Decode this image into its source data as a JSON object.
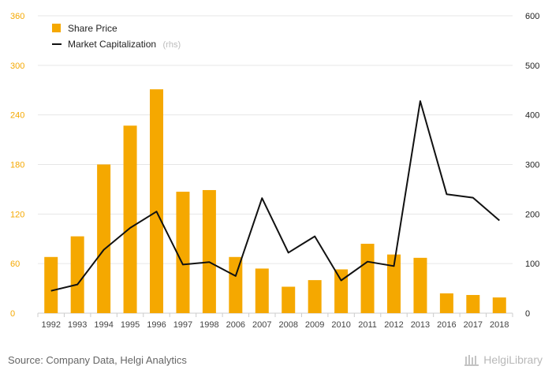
{
  "chart_data": {
    "type": "bar",
    "categories": [
      "1992",
      "1993",
      "1994",
      "1995",
      "1996",
      "1997",
      "1998",
      "2006",
      "2007",
      "2008",
      "2009",
      "2010",
      "2011",
      "2012",
      "2013",
      "2016",
      "2017",
      "2018"
    ],
    "series": [
      {
        "name": "Share Price",
        "axis": "left",
        "type": "bar",
        "color": "#f5a800",
        "values": [
          68,
          93,
          180,
          227,
          271,
          147,
          149,
          68,
          54,
          32,
          40,
          53,
          84,
          71,
          67,
          24,
          22,
          19
        ]
      },
      {
        "name": "Market Capitalization",
        "axis_note": "(rhs)",
        "axis": "right",
        "type": "line",
        "color": "#111111",
        "values": [
          45,
          58,
          128,
          172,
          205,
          98,
          103,
          75,
          232,
          122,
          155,
          66,
          104,
          95,
          428,
          240,
          233,
          187
        ]
      }
    ],
    "ylim_left": [
      0,
      360
    ],
    "yticks_left": [
      "0",
      "60",
      "120",
      "180",
      "240",
      "300",
      "360"
    ],
    "ylim_right": [
      0,
      600
    ],
    "yticks_right": [
      "0",
      "100",
      "200",
      "300",
      "400",
      "500",
      "600"
    ],
    "legend_position": "top-left",
    "grid": true
  },
  "footer": {
    "source": "Source: Company Data, Helgi Analytics",
    "brand": "HelgiLibrary"
  }
}
